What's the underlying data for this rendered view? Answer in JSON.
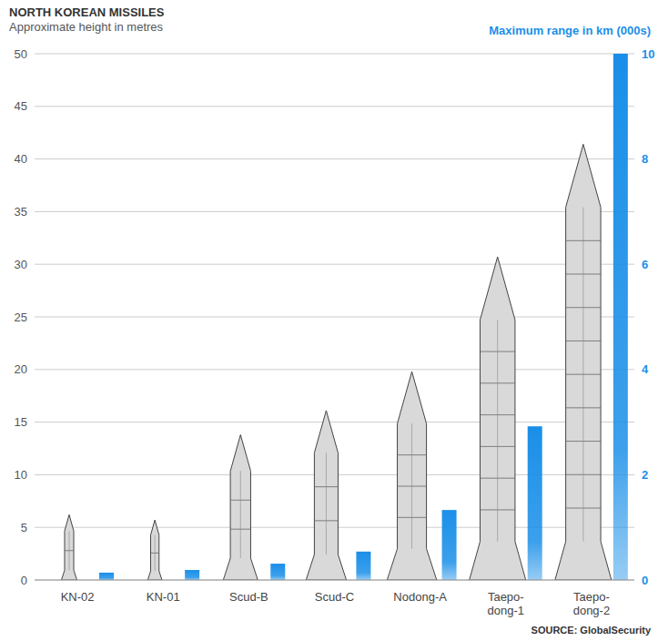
{
  "chart_data": {
    "type": "bar",
    "title": "NORTH KOREAN MISSILES",
    "source": "SOURCE: GlobalSecurity",
    "categories": [
      "KN-02",
      "KN-01",
      "Scud-B",
      "Scud-C",
      "Nodong-A",
      "Taepo-dong-1",
      "Taepo-dong-2"
    ],
    "series": [
      {
        "name": "Approximate height in metres",
        "color": "#d9d9d9",
        "marker": "missile",
        "values": [
          6.2,
          5.7,
          13.8,
          16.1,
          19.8,
          30.7,
          41.4
        ]
      },
      {
        "name": "Maximum range in km (000s)",
        "color": "#1a8fe8",
        "axis": "y2",
        "values": [
          0.14,
          0.19,
          0.31,
          0.54,
          1.33,
          2.92,
          10
        ]
      }
    ],
    "ylim": [
      0,
      50
    ],
    "yticks": [
      0,
      5,
      10,
      15,
      20,
      25,
      30,
      35,
      40,
      45,
      50
    ],
    "y2lim": [
      0,
      10
    ],
    "y2ticks": [
      0,
      2,
      4,
      6,
      8,
      10
    ],
    "grid": true
  }
}
